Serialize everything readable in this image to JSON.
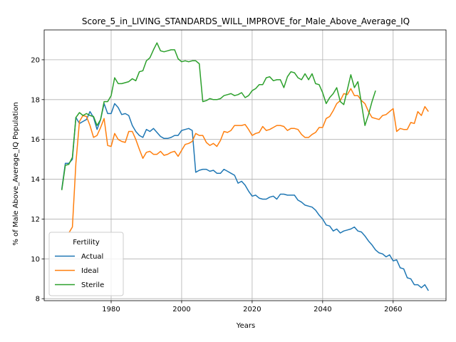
{
  "chart_data": {
    "type": "line",
    "title": "Score_5_in_LIVING_STANDARDS_WILL_IMPROVE_for_Male_Above_Average_IQ",
    "xlabel": "Years",
    "ylabel": "% of Male Above_Average_IQ Population",
    "xlim": [
      1961,
      2075
    ],
    "ylim": [
      7.9,
      21.5
    ],
    "xticks": [
      1980,
      2000,
      2020,
      2040,
      2060
    ],
    "yticks": [
      8,
      10,
      12,
      14,
      16,
      18,
      20
    ],
    "grid": true,
    "legend": {
      "title": "Fertility",
      "position": "lower-left"
    },
    "series": [
      {
        "name": "Actual",
        "color": "#1f77b4",
        "x": [
          1966,
          1967,
          1968,
          1969,
          1970,
          1971,
          1972,
          1973,
          1974,
          1975,
          1976,
          1977,
          1978,
          1979,
          1980,
          1981,
          1982,
          1983,
          1984,
          1985,
          1986,
          1987,
          1988,
          1989,
          1990,
          1991,
          1992,
          1993,
          1994,
          1995,
          1996,
          1997,
          1998,
          1999,
          2000,
          2001,
          2002,
          2003,
          2004,
          2005,
          2006,
          2007,
          2008,
          2009,
          2010,
          2011,
          2012,
          2013,
          2014,
          2015,
          2016,
          2017,
          2018,
          2019,
          2020,
          2021,
          2022,
          2023,
          2024,
          2025,
          2026,
          2027,
          2028,
          2029,
          2030,
          2031,
          2032,
          2033,
          2034,
          2035,
          2036,
          2037,
          2038,
          2039,
          2040,
          2041,
          2042,
          2043,
          2044,
          2045,
          2046,
          2047,
          2048,
          2049,
          2050,
          2051,
          2052,
          2053,
          2054,
          2055,
          2056,
          2057,
          2058,
          2059,
          2060,
          2061,
          2062,
          2063,
          2064,
          2065,
          2066,
          2067,
          2068,
          2069,
          2070
        ],
        "values": [
          13.5,
          14.8,
          14.8,
          15.0,
          17.1,
          16.8,
          16.9,
          17.0,
          17.4,
          17.1,
          16.5,
          17.0,
          17.8,
          17.3,
          17.3,
          17.8,
          17.6,
          17.25,
          17.3,
          17.2,
          16.7,
          16.4,
          16.2,
          16.1,
          16.5,
          16.4,
          16.55,
          16.35,
          16.15,
          16.05,
          16.05,
          16.1,
          16.2,
          16.2,
          16.45,
          16.5,
          16.55,
          16.45,
          14.35,
          14.45,
          14.5,
          14.5,
          14.4,
          14.45,
          14.3,
          14.3,
          14.5,
          14.4,
          14.3,
          14.2,
          13.8,
          13.9,
          13.7,
          13.4,
          13.15,
          13.2,
          13.05,
          13.0,
          13.0,
          13.1,
          13.15,
          13.0,
          13.25,
          13.25,
          13.2,
          13.2,
          13.2,
          12.95,
          12.85,
          12.7,
          12.65,
          12.6,
          12.45,
          12.2,
          12.0,
          11.7,
          11.65,
          11.4,
          11.5,
          11.3,
          11.4,
          11.45,
          11.5,
          11.6,
          11.4,
          11.35,
          11.15,
          10.9,
          10.7,
          10.45,
          10.3,
          10.25,
          10.1,
          10.2,
          9.9,
          9.95,
          9.55,
          9.5,
          9.05,
          9.0,
          8.7,
          8.7,
          8.55,
          8.7,
          8.4
        ]
      },
      {
        "name": "Ideal",
        "color": "#ff7f0e",
        "x": [
          1968,
          1969,
          1970,
          1971,
          1972,
          1973,
          1974,
          1975,
          1976,
          1977,
          1978,
          1979,
          1980,
          1981,
          1982,
          1983,
          1984,
          1985,
          1986,
          1987,
          1988,
          1989,
          1990,
          1991,
          1992,
          1993,
          1994,
          1995,
          1996,
          1997,
          1998,
          1999,
          2000,
          2001,
          2002,
          2003,
          2004,
          2005,
          2006,
          2007,
          2008,
          2009,
          2010,
          2011,
          2012,
          2013,
          2014,
          2015,
          2016,
          2017,
          2018,
          2019,
          2020,
          2021,
          2022,
          2023,
          2024,
          2025,
          2026,
          2027,
          2028,
          2029,
          2030,
          2031,
          2032,
          2033,
          2034,
          2035,
          2036,
          2037,
          2038,
          2039,
          2040,
          2041,
          2042,
          2043,
          2044,
          2045,
          2046,
          2047,
          2048,
          2049,
          2050,
          2051,
          2052,
          2053,
          2054,
          2055,
          2056,
          2057,
          2058,
          2059,
          2060,
          2061,
          2062,
          2063,
          2064,
          2065,
          2066,
          2067,
          2068,
          2069,
          2070
        ],
        "values": [
          11.3,
          11.6,
          14.8,
          16.9,
          17.2,
          17.15,
          16.7,
          16.1,
          16.2,
          16.6,
          17.05,
          15.7,
          15.65,
          16.3,
          16.0,
          15.9,
          15.85,
          16.4,
          16.4,
          16.0,
          15.5,
          15.05,
          15.35,
          15.4,
          15.25,
          15.25,
          15.4,
          15.2,
          15.25,
          15.35,
          15.4,
          15.15,
          15.45,
          15.75,
          15.8,
          15.9,
          16.3,
          16.2,
          16.2,
          15.85,
          15.7,
          15.8,
          15.65,
          15.95,
          16.4,
          16.35,
          16.45,
          16.7,
          16.7,
          16.7,
          16.75,
          16.5,
          16.2,
          16.3,
          16.35,
          16.65,
          16.45,
          16.5,
          16.6,
          16.7,
          16.7,
          16.65,
          16.45,
          16.55,
          16.55,
          16.5,
          16.25,
          16.1,
          16.1,
          16.25,
          16.35,
          16.6,
          16.6,
          17.05,
          17.15,
          17.45,
          17.8,
          17.95,
          18.3,
          18.25,
          18.55,
          18.2,
          18.2,
          17.95,
          17.8,
          17.4,
          17.1,
          17.05,
          17.0,
          17.2,
          17.25,
          17.4,
          17.55,
          16.4,
          16.55,
          16.5,
          16.5,
          16.85,
          16.8,
          17.4,
          17.2,
          17.65,
          17.4
        ]
      },
      {
        "name": "Sterile",
        "color": "#2ca02c",
        "x": [
          1966,
          1967,
          1968,
          1969,
          1970,
          1971,
          1972,
          1973,
          1974,
          1975,
          1976,
          1977,
          1978,
          1979,
          1980,
          1981,
          1982,
          1983,
          1984,
          1985,
          1986,
          1987,
          1988,
          1989,
          1990,
          1991,
          1992,
          1993,
          1994,
          1995,
          1996,
          1997,
          1998,
          1999,
          2000,
          2001,
          2002,
          2003,
          2004,
          2005,
          2006,
          2007,
          2008,
          2009,
          2010,
          2011,
          2012,
          2013,
          2014,
          2015,
          2016,
          2017,
          2018,
          2019,
          2020,
          2021,
          2022,
          2023,
          2024,
          2025,
          2026,
          2027,
          2028,
          2029,
          2030,
          2031,
          2032,
          2033,
          2034,
          2035,
          2036,
          2037,
          2038,
          2039,
          2040,
          2041,
          2042,
          2043,
          2044,
          2045,
          2046,
          2047,
          2048,
          2049,
          2050,
          2051,
          2052,
          2053,
          2054,
          2055
        ],
        "values": [
          13.45,
          14.7,
          14.75,
          15.1,
          17.1,
          17.35,
          17.2,
          17.3,
          17.2,
          17.15,
          16.7,
          17.0,
          17.9,
          17.9,
          18.2,
          19.1,
          18.8,
          18.8,
          18.85,
          18.9,
          19.05,
          18.95,
          19.4,
          19.45,
          19.95,
          20.1,
          20.5,
          20.85,
          20.45,
          20.4,
          20.45,
          20.5,
          20.5,
          20.05,
          19.9,
          19.95,
          19.9,
          19.95,
          19.95,
          19.8,
          17.9,
          17.95,
          18.05,
          18.0,
          18.0,
          18.05,
          18.2,
          18.25,
          18.3,
          18.2,
          18.25,
          18.35,
          18.1,
          18.2,
          18.45,
          18.55,
          18.75,
          18.75,
          19.1,
          19.15,
          18.95,
          19.0,
          19.0,
          18.6,
          19.15,
          19.4,
          19.35,
          19.1,
          19.0,
          19.3,
          19.0,
          19.3,
          18.8,
          18.75,
          18.35,
          17.8,
          18.1,
          18.3,
          18.6,
          17.9,
          17.75,
          18.5,
          19.25,
          18.6,
          18.9,
          17.8,
          16.7,
          17.25,
          17.9,
          18.45
        ]
      }
    ]
  }
}
